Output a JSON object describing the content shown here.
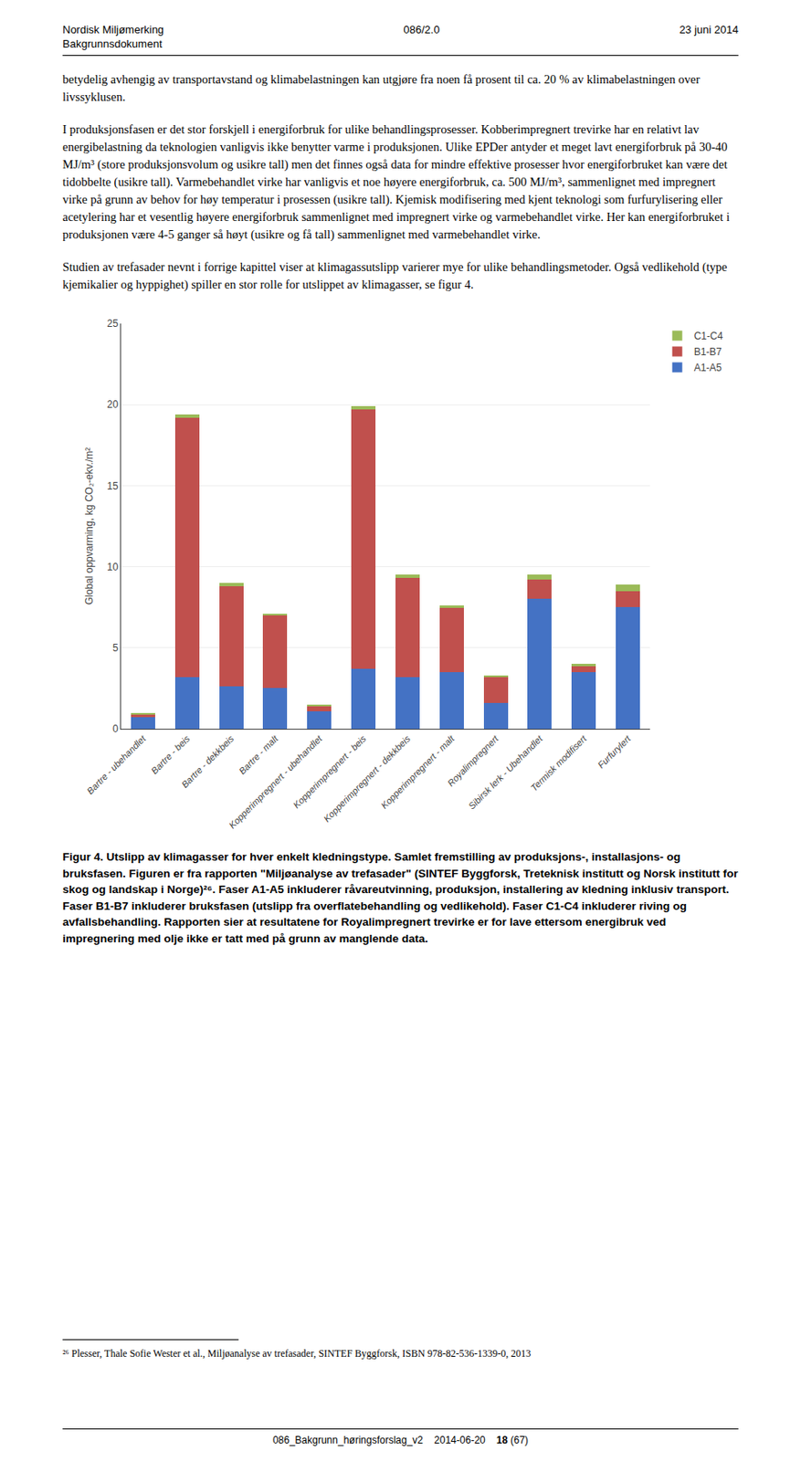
{
  "chart_data": {
    "type": "bar",
    "stacked": true,
    "categories": [
      "Bartre - ubehandlet",
      "Bartre - beis",
      "Bartre - dekkbeis",
      "Bartre - malt",
      "Kopperimpregnert - ubehandlet",
      "Kopperimpregnert - beis",
      "Kopperimpregnert - dekkbeis",
      "Kopperimpregnert - malt",
      "Royalimpregnert",
      "Sibirsk lerk - Ubehandlet",
      "Termisk modifisert",
      "Furfurylert"
    ],
    "series": [
      {
        "name": "A1-A5",
        "color": "#4472C4",
        "values": [
          0.7,
          3.2,
          2.6,
          2.5,
          1.1,
          3.7,
          3.2,
          3.5,
          1.6,
          8.0,
          3.5,
          7.5
        ]
      },
      {
        "name": "B1-B7",
        "color": "#C0504D",
        "values": [
          0.2,
          16.0,
          6.2,
          4.5,
          0.3,
          16.0,
          6.1,
          4.0,
          1.6,
          1.2,
          0.4,
          1.0
        ]
      },
      {
        "name": "C1-C4",
        "color": "#9BBB59",
        "values": [
          0.05,
          0.2,
          0.2,
          0.1,
          0.1,
          0.2,
          0.2,
          0.1,
          0.1,
          0.3,
          0.1,
          0.4
        ]
      }
    ],
    "ylabel": "Global oppvarming, kg CO₂-ekv./m²",
    "ylim": [
      0,
      25
    ],
    "yticks": [
      0,
      5,
      10,
      15,
      20,
      25
    ],
    "grid": true,
    "legend": "upper right",
    "annotations": [
      "Nordisk Miljømerking",
      "086/2.0",
      "23 juni 2014",
      "Bakgrunnsdokument",
      "betydelig avhengig av transportavstand og klimabelastningen kan utgjøre fra noen få prosent til ca. 20 % av klimabelastningen over livssyklusen.",
      "I produksjonsfasen er det stor forskjell i energiforbruk for ulike behandlingsprosesser. Kobberimpregnert trevirke har en relativt lav energibelastning da teknologien vanligvis ikke benytter varme i produksjonen. Ulike EPDer antyder et meget lavt energiforbruk på 30-40 MJ/m³ (store produksjonsvolum og usikre tall) men det finnes også data for mindre effektive prosesser hvor energiforbruket kan være det tidobbelte (usikre tall). Varmebehandlet virke har vanligvis et noe høyere energiforbruk, ca. 500 MJ/m³, sammenlignet med impregnert virke på grunn av behov for høy temperatur i prosessen (usikre tall). Kjemisk modifisering med kjent teknologi som furfurylisering eller acetylering har et vesentlig høyere energiforbruk sammenlignet med impregnert virke og varmebehandlet virke. Her kan energiforbruket i produksjonen være 4-5 ganger så høyt (usikre og få tall) sammenlignet med varmebehandlet virke.",
      "Studien av trefasader nevnt i forrige kapittel viser at klimagassutslipp varierer mye for ulike behandlingsmetoder. Også vedlikehold (type kjemikalier og hyppighet) spiller en stor rolle for utslippet av klimagasser, se figur 4.",
      "Figur 4. Utslipp av klimagasser for hver enkelt kledningstype. Samlet fremstilling av produksjons-, installasjons- og bruksfasen. Figuren er fra rapporten \"Miljøanalyse av trefasader\" (SINTEF Byggforsk, Treteknisk institutt og Norsk institutt for skog og landskap i Norge)²⁶. Faser A1-A5 inkluderer råvareutvinning, produksjon, installering av kledning inklusiv transport. Faser B1-B7 inkluderer bruksfasen (utslipp fra overflatebehandling og vedlikehold). Faser C1-C4 inkluderer riving og avfallsbehandling. Rapporten sier at resultatene for Royalimpregnert trevirke er for lave ettersom energibruk ved impregnering med olje ikke er tatt med på grunn av manglende data.",
      "²⁶ Plesser, Thale Sofie Wester et al., Miljøanalyse av trefasader, SINTEF Byggforsk, ISBN 978-82-536-1339-0, 2013",
      "086_Bakgrunn_høringsforslag_v2    2014-06-20",
      "18",
      "(67)"
    ]
  }
}
